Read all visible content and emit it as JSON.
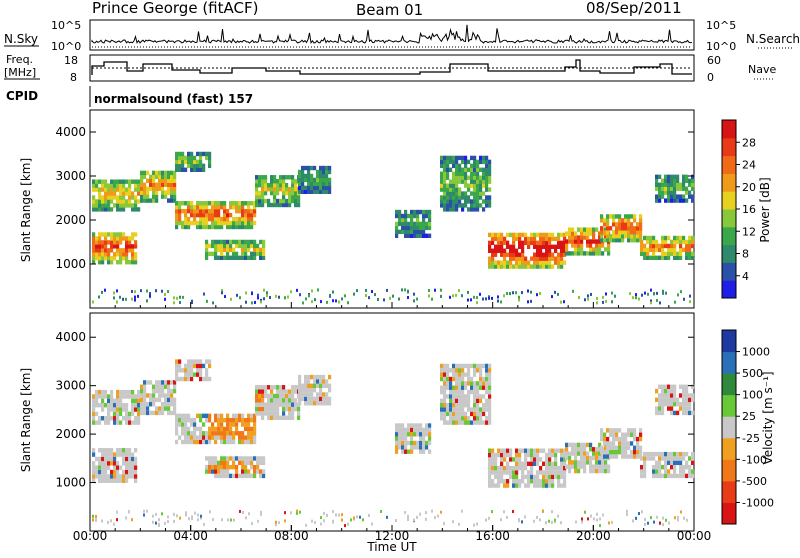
{
  "header": {
    "station": "Prince George (fitACF)",
    "beam": "Beam 01",
    "date": "08/Sep/2011"
  },
  "strip_labels": {
    "nsky": "N.Sky",
    "nsky_top": "10^5",
    "nsky_bottom": "10^0",
    "nsearch": "N.Search",
    "nsearch_top": "10^5",
    "nsearch_bottom": "10^0",
    "freq_line1": "Freq.",
    "freq_line2": "[MHz]",
    "freq_top": "18",
    "freq_bottom": "8",
    "nave": "Nave",
    "nave_top": "60",
    "nave_bottom": "0",
    "cpid": "CPID",
    "cpid_text": "normalsound (fast) 157"
  },
  "chart_data": [
    {
      "type": "heatmap",
      "name": "power",
      "ylabel": "Slant Range [km]",
      "yticks": [
        "1000",
        "2000",
        "3000",
        "4000"
      ],
      "colorbar_label": "Power [dB]",
      "colorbar_ticks": [
        "4",
        "8",
        "12",
        "16",
        "20",
        "24",
        "28"
      ],
      "colorbar_colors": [
        "#1e1ee6",
        "#2a50a8",
        "#2e8a6a",
        "#3aa84a",
        "#88c83a",
        "#e8d020",
        "#f09a1a",
        "#f06a18",
        "#e83a16",
        "#d81414"
      ],
      "ylim": [
        0,
        4500
      ],
      "clim": [
        0,
        32
      ]
    },
    {
      "type": "heatmap",
      "name": "velocity",
      "ylabel": "Slant Range [km]",
      "yticks": [
        "1000",
        "2000",
        "3000",
        "4000"
      ],
      "xlabel": "Time UT",
      "xticks": [
        "00:00",
        "04:00",
        "08:00",
        "12:00",
        "16:00",
        "20:00",
        "00:00"
      ],
      "colorbar_label": "Velocity [m s⁻¹]",
      "colorbar_ticks": [
        "1000",
        "500",
        "100",
        "25",
        "-25",
        "-100",
        "-500",
        "-1000"
      ],
      "colorbar_colors": [
        "#1e3aa0",
        "#2a70b8",
        "#2e8a3a",
        "#68c838",
        "#c8c8c8",
        "#f0a020",
        "#f07818",
        "#e83c16",
        "#d81414"
      ],
      "ylim": [
        0,
        4500
      ],
      "clim": [
        -1000,
        1000
      ]
    }
  ]
}
